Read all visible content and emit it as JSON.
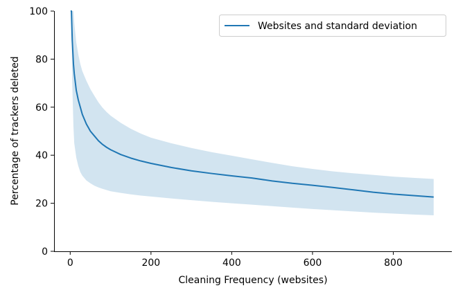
{
  "chart_data": {
    "type": "line",
    "title": "",
    "xlabel": "Cleaning Frequency (websites)",
    "ylabel": "Percentage of trackers deleted",
    "xlim": [
      -40,
      945
    ],
    "ylim": [
      0,
      100
    ],
    "xticks": [
      0,
      200,
      400,
      600,
      800
    ],
    "yticks": [
      0,
      20,
      40,
      60,
      80,
      100
    ],
    "grid": false,
    "legend_position": "top-right",
    "x": [
      1,
      3,
      5,
      8,
      10,
      15,
      20,
      25,
      30,
      40,
      50,
      60,
      70,
      80,
      90,
      100,
      125,
      150,
      175,
      200,
      250,
      300,
      350,
      400,
      450,
      500,
      550,
      600,
      650,
      700,
      750,
      800,
      850,
      900
    ],
    "series": [
      {
        "name": "Websites and standard deviation",
        "color": "#1f77b4",
        "band_color": "#1f77b4",
        "values": [
          100,
          100,
          88,
          78,
          74,
          67,
          63,
          60,
          57,
          53,
          50,
          48,
          46,
          44.5,
          43.3,
          42.3,
          40.3,
          38.8,
          37.6,
          36.6,
          34.9,
          33.5,
          32.4,
          31.4,
          30.5,
          29.3,
          28.3,
          27.5,
          26.6,
          25.6,
          24.6,
          23.8,
          23.2,
          22.6
        ],
        "lower": [
          100,
          100,
          70,
          52,
          45,
          39,
          35.5,
          33,
          31.5,
          29.5,
          28.3,
          27.3,
          26.6,
          26,
          25.5,
          25,
          24.3,
          23.7,
          23.2,
          22.8,
          22,
          21.3,
          20.6,
          20,
          19.4,
          18.8,
          18.2,
          17.6,
          17.1,
          16.6,
          16.1,
          15.7,
          15.3,
          15
        ],
        "upper": [
          100,
          100,
          100,
          100,
          95,
          87,
          82,
          78,
          75,
          71,
          67.5,
          64.7,
          62,
          59.8,
          58,
          56.5,
          53.5,
          51,
          49,
          47.3,
          45,
          43,
          41.3,
          39.8,
          38.3,
          36.8,
          35.4,
          34.3,
          33.3,
          32.5,
          31.8,
          31.1,
          30.6,
          30.1
        ]
      }
    ]
  }
}
